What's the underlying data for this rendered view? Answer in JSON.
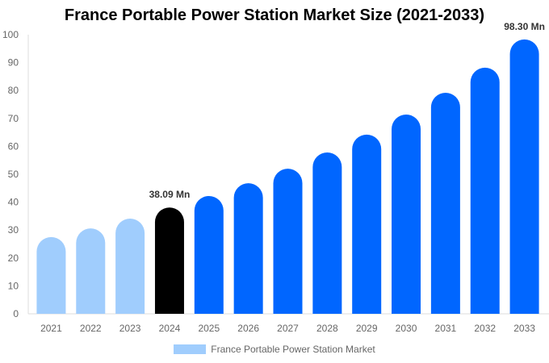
{
  "chart_data": {
    "type": "bar",
    "title": "France Portable Power Station Market Size (2021-2033)",
    "categories": [
      "2021",
      "2022",
      "2023",
      "2024",
      "2025",
      "2026",
      "2027",
      "2028",
      "2029",
      "2030",
      "2031",
      "2032",
      "2033"
    ],
    "values": [
      27.5,
      30.6,
      34.1,
      38.09,
      42.2,
      46.8,
      52.0,
      57.8,
      64.2,
      71.4,
      79.2,
      88.2,
      98.3
    ],
    "data_labels": {
      "3": "38.09 Mn",
      "12": "98.30 Mn"
    },
    "bar_colors": [
      "#a0cdfd",
      "#a0cdfd",
      "#a0cdfd",
      "#000000",
      "#0066ff",
      "#0066ff",
      "#0066ff",
      "#0066ff",
      "#0066ff",
      "#0066ff",
      "#0066ff",
      "#0066ff",
      "#0066ff"
    ],
    "ylim": [
      0,
      100
    ],
    "yticks": [
      0,
      10,
      20,
      30,
      40,
      50,
      60,
      70,
      80,
      90,
      100
    ],
    "xlabel": "",
    "ylabel": "",
    "grid": false,
    "legend": {
      "position": "bottom",
      "entries": [
        {
          "label": "France Portable Power Station Market",
          "color": "#a0cdfd"
        }
      ]
    }
  }
}
